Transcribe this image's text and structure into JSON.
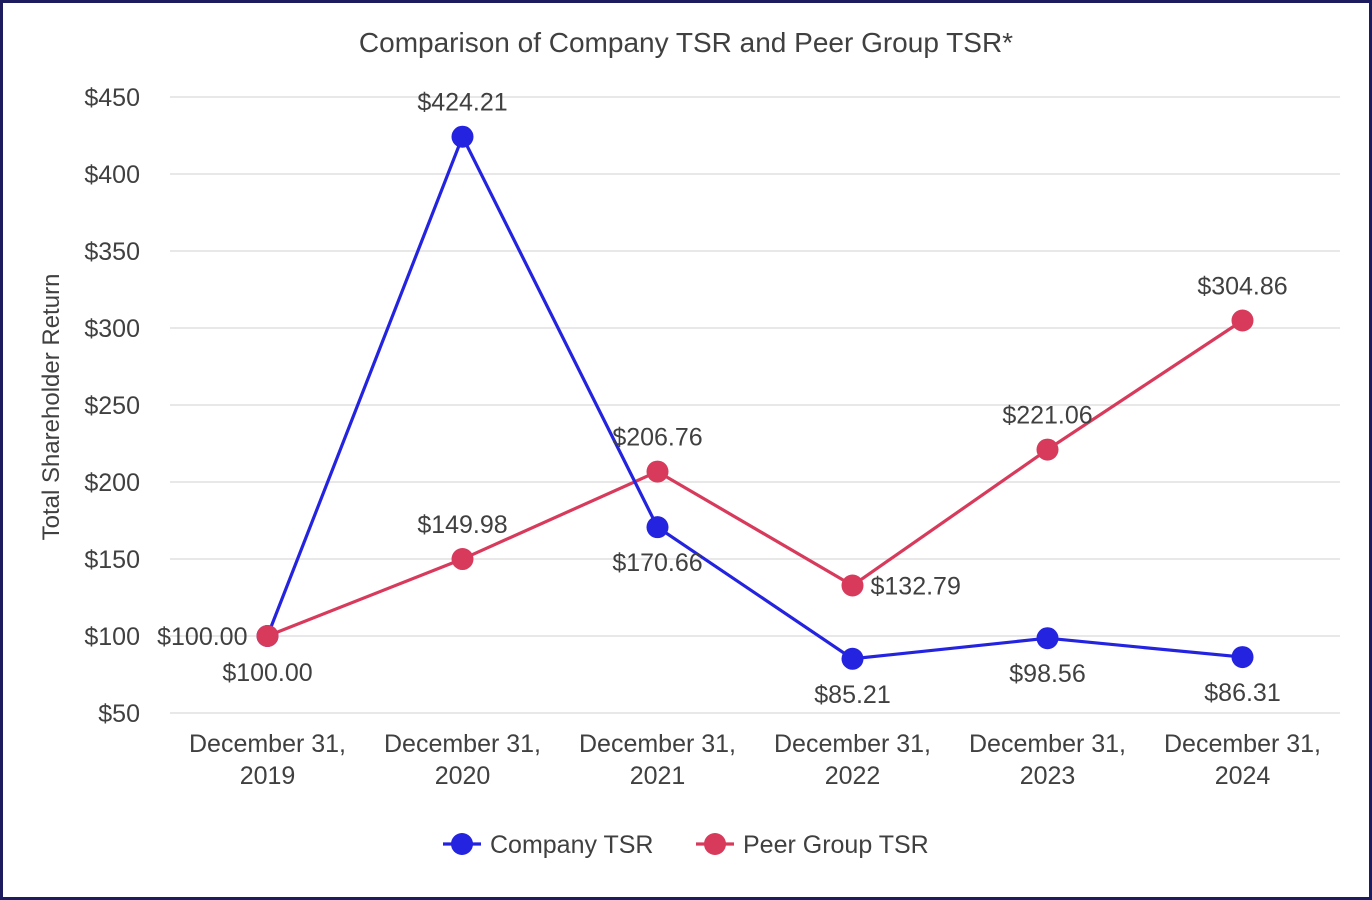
{
  "chart_data": {
    "type": "line",
    "title": "Comparison of Company TSR and Peer Group TSR*",
    "xlabel": "",
    "ylabel": "Total Shareholder Return",
    "categories": [
      [
        "December 31,",
        "2019"
      ],
      [
        "December 31,",
        "2020"
      ],
      [
        "December 31,",
        "2021"
      ],
      [
        "December 31,",
        "2022"
      ],
      [
        "December 31,",
        "2023"
      ],
      [
        "December 31,",
        "2024"
      ]
    ],
    "ylim": [
      50,
      450
    ],
    "yticks": [
      50,
      100,
      150,
      200,
      250,
      300,
      350,
      400,
      450
    ],
    "ytick_labels": [
      "$50",
      "$100",
      "$150",
      "$200",
      "$250",
      "$300",
      "$350",
      "$400",
      "$450"
    ],
    "grid": true,
    "legend_position": "bottom",
    "series": [
      {
        "name": "Company TSR",
        "color": "#2323e0",
        "values": [
          100.0,
          424.21,
          170.66,
          85.21,
          98.56,
          86.31
        ],
        "labels": [
          "$100.00",
          "$424.21",
          "$170.66",
          "$85.21",
          "$98.56",
          "$86.31"
        ]
      },
      {
        "name": "Peer Group TSR",
        "color": "#d83a5c",
        "values": [
          100.0,
          149.98,
          206.76,
          132.79,
          221.06,
          304.86
        ],
        "labels": [
          "$100.00",
          "$149.98",
          "$206.76",
          "$132.79",
          "$221.06",
          "$304.86"
        ]
      }
    ]
  }
}
